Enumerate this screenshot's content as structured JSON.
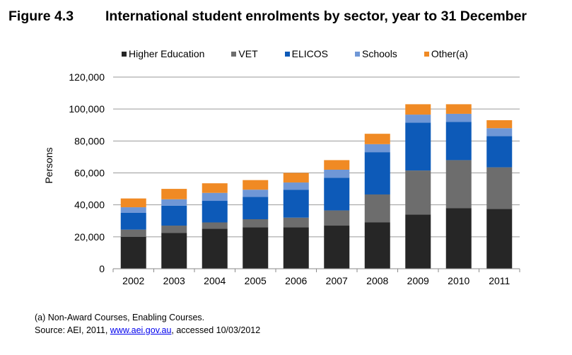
{
  "figure": {
    "number": "Figure 4.3",
    "title": "International student enrolments by sector, year to 31 December"
  },
  "footnotes": {
    "note": "(a) Non-Award Courses, Enabling Courses.",
    "source_prefix": "Source: AEI, 2011, ",
    "source_link": "www.aei.gov.au",
    "source_suffix": ", accessed 10/03/2012"
  },
  "chart_data": {
    "type": "bar",
    "stacked": true,
    "title": "",
    "xlabel": "",
    "ylabel": "Persons",
    "ylim": [
      0,
      120000
    ],
    "yticks": [
      "0",
      "20,000",
      "40,000",
      "60,000",
      "80,000",
      "100,000",
      "120,000"
    ],
    "ytick_values": [
      0,
      20000,
      40000,
      60000,
      80000,
      100000,
      120000
    ],
    "grid": true,
    "legend_position": "top",
    "categories": [
      "2002",
      "2003",
      "2004",
      "2005",
      "2006",
      "2007",
      "2008",
      "2009",
      "2010",
      "2011"
    ],
    "series": [
      {
        "name": "Higher Education",
        "color": "#262626",
        "values": [
          20000,
          22500,
          25000,
          26000,
          26000,
          27000,
          29000,
          34000,
          38000,
          37500
        ]
      },
      {
        "name": "VET",
        "color": "#6d6d6d",
        "values": [
          4500,
          4500,
          4000,
          5000,
          6000,
          9500,
          17500,
          27500,
          30000,
          26000
        ]
      },
      {
        "name": "ELICOS",
        "color": "#0d5ab8",
        "values": [
          10500,
          12500,
          13500,
          14000,
          17500,
          20500,
          26500,
          30000,
          24000,
          19500
        ]
      },
      {
        "name": "Schools",
        "color": "#6f97d6",
        "values": [
          3500,
          4000,
          5000,
          4500,
          4500,
          5000,
          5000,
          5000,
          5000,
          5000
        ]
      },
      {
        "name": "Other(a)",
        "color": "#f08a24",
        "values": [
          5500,
          6500,
          6000,
          6000,
          6000,
          6000,
          6500,
          6500,
          6000,
          5000
        ]
      }
    ]
  }
}
